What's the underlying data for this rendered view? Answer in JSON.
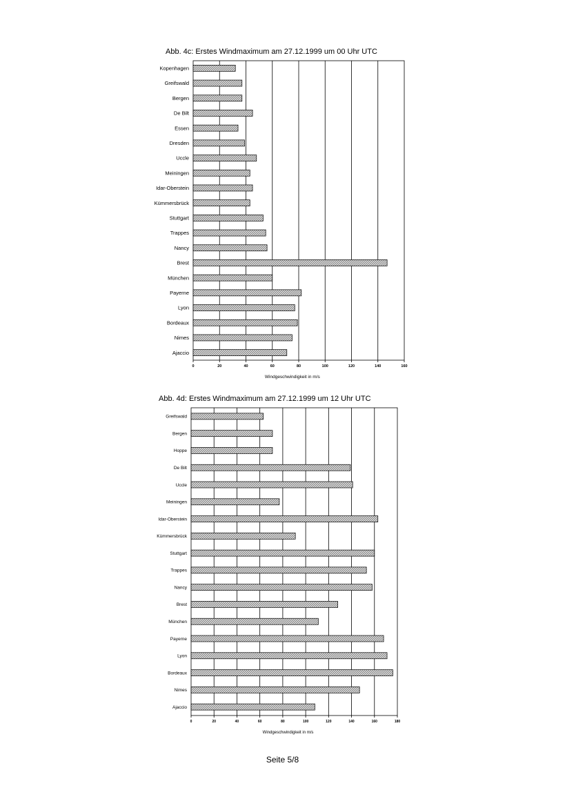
{
  "chart_data": [
    {
      "type": "bar",
      "orientation": "horizontal",
      "title": "Abb. 4c: Erstes Windmaximum am 27.12.1999 um 00 Uhr UTC",
      "xlabel": "Windgeschwindigkeit in m/s",
      "ylabel": "",
      "xlim": [
        0,
        160
      ],
      "ticks": [
        "0",
        "20",
        "40",
        "60",
        "80",
        "100",
        "120",
        "140",
        "160"
      ],
      "grid": true,
      "categories": [
        "Kopenhagen",
        "Greifswald",
        "Bergen",
        "De Bilt",
        "Essen",
        "Dresden",
        "Uccle",
        "Meiningen",
        "Idar-Oberstein",
        "Kümmersbrück",
        "Stuttgart",
        "Trappes",
        "Nancy",
        "Brest",
        "München",
        "Payerne",
        "Lyon",
        "Bordeaux",
        "Nimes",
        "Ajaccio"
      ],
      "values": [
        32,
        37,
        37,
        45,
        34,
        39,
        48,
        43,
        45,
        43,
        53,
        55,
        56,
        147,
        60,
        82,
        77,
        79,
        75,
        71
      ]
    },
    {
      "type": "bar",
      "orientation": "horizontal",
      "title": "Abb. 4d: Erstes Windmaximum am 27.12.1999 um 12 Uhr UTC",
      "xlabel": "Windgeschwindigkeit in m/s",
      "ylabel": "",
      "xlim": [
        0,
        180
      ],
      "ticks": [
        "0",
        "20",
        "40",
        "60",
        "80",
        "100",
        "120",
        "140",
        "160",
        "180"
      ],
      "grid": true,
      "categories": [
        "Greifswald",
        "Bergen",
        "Hoppe",
        "De Bilt",
        "Uccle",
        "Meiningen",
        "Idar-Oberstein",
        "Kümmersbrück",
        "Stuttgart",
        "Trappes",
        "Nancy",
        "Brest",
        "München",
        "Payerne",
        "Lyon",
        "Bordeaux",
        "Nimes",
        "Ajaccio"
      ],
      "values": [
        63,
        71,
        71,
        139,
        141,
        77,
        163,
        91,
        160,
        153,
        158,
        128,
        111,
        168,
        171,
        176,
        147,
        108
      ]
    }
  ],
  "footer": {
    "page_label": "Seite 5/8"
  },
  "colors": {
    "bar_fill": "#c8c8c8",
    "bar_stroke": "#000000",
    "grid": "#000000"
  }
}
